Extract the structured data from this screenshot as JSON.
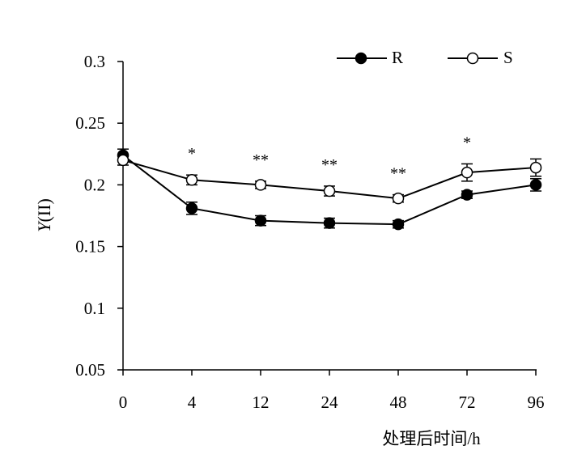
{
  "chart_data": {
    "type": "line",
    "title": "",
    "xlabel": "处理后时间/h",
    "ylabel_italic": "Y",
    "ylabel_rest": "(II)",
    "ylim": [
      0.05,
      0.3
    ],
    "categories": [
      "0",
      "4",
      "12",
      "24",
      "48",
      "72",
      "96"
    ],
    "y_ticks": [
      "0.3",
      "0.25",
      "0.2",
      "0.15",
      "0.1",
      "0.05"
    ],
    "legend_position": "top-right",
    "series": [
      {
        "name": "R",
        "marker": "filled-circle",
        "values": [
          0.224,
          0.181,
          0.171,
          0.169,
          0.168,
          0.192,
          0.2
        ],
        "errors": [
          0.005,
          0.005,
          0.004,
          0.004,
          0.003,
          0.003,
          0.005
        ]
      },
      {
        "name": "S",
        "marker": "open-circle",
        "values": [
          0.22,
          0.204,
          0.2,
          0.195,
          0.189,
          0.21,
          0.214
        ],
        "errors": [
          0.004,
          0.004,
          0.003,
          0.004,
          0.003,
          0.007,
          0.007
        ]
      }
    ],
    "significance": [
      "",
      "*",
      "**",
      "**",
      "**",
      "*",
      ""
    ]
  }
}
